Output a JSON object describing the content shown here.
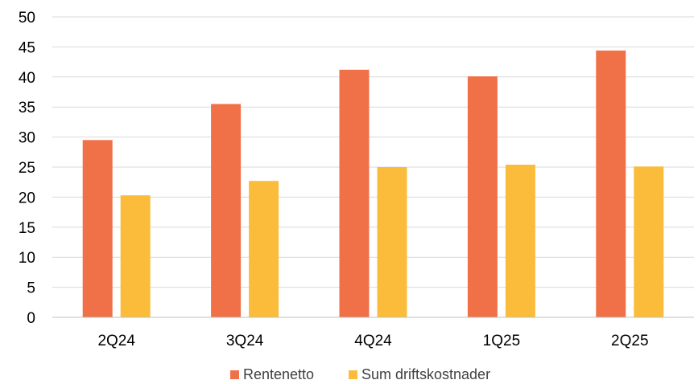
{
  "chart_data": {
    "type": "bar",
    "categories": [
      "2Q24",
      "3Q24",
      "4Q24",
      "1Q25",
      "2Q25"
    ],
    "series": [
      {
        "name": "Rentenetto",
        "values": [
          29.5,
          35.5,
          41.2,
          40.1,
          44.4
        ],
        "color": "#f07048"
      },
      {
        "name": "Sum driftskostnader",
        "values": [
          20.3,
          22.7,
          25.0,
          25.4,
          25.1
        ],
        "color": "#fbbc3c"
      }
    ],
    "yticks": [
      "0",
      "5",
      "10",
      "15",
      "20",
      "25",
      "30",
      "35",
      "40",
      "45",
      "50"
    ],
    "ylim": [
      0,
      50
    ],
    "grid": true,
    "legend_position": "bottom"
  }
}
